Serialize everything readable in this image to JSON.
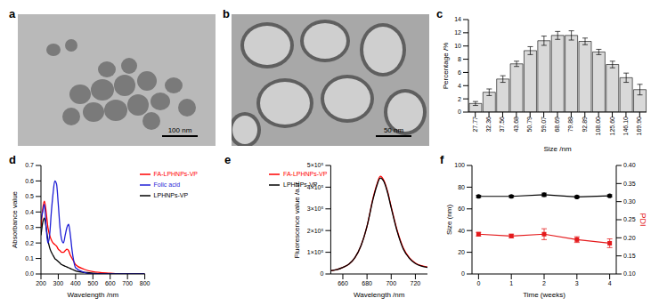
{
  "images": [
    {
      "label": "a",
      "scale_bar": "100 nm"
    },
    {
      "label": "b",
      "scale_bar": "50 nm"
    }
  ],
  "chart_data": [
    {
      "label": "c",
      "type": "bar",
      "x_label": "Size /nm",
      "y_label": "Percentage /%",
      "categories": [
        "27.77",
        "32.36",
        "37.56",
        "43.68",
        "50.79",
        "59.07",
        "68.69",
        "79.88",
        "92.89",
        "108.00",
        "125.60",
        "146.10",
        "169.90"
      ],
      "values": [
        1.3,
        3.0,
        5.0,
        7.3,
        9.3,
        10.8,
        11.6,
        11.6,
        10.7,
        9.1,
        7.2,
        5.2,
        3.4
      ],
      "error": [
        0.3,
        0.5,
        0.5,
        0.4,
        0.6,
        0.7,
        0.6,
        0.7,
        0.5,
        0.4,
        0.5,
        0.7,
        0.8
      ],
      "color": "#d9d9d9",
      "ylim": [
        0,
        14
      ],
      "yticks": [
        0,
        2,
        4,
        6,
        8,
        10,
        12,
        14
      ]
    },
    {
      "label": "d",
      "type": "line",
      "x_label": "Wavelength /nm",
      "y_label": "Absorbance value",
      "x": [
        200,
        210,
        220,
        230,
        240,
        250,
        260,
        270,
        280,
        290,
        300,
        310,
        320,
        330,
        340,
        350,
        360,
        370,
        380,
        390,
        400,
        450,
        500,
        600,
        700,
        800
      ],
      "series": [
        {
          "name": "FA-LPHNPs-VP",
          "color": "#ff0000",
          "values": [
            0.3,
            0.42,
            0.47,
            0.4,
            0.3,
            0.25,
            0.22,
            0.2,
            0.19,
            0.18,
            0.16,
            0.15,
            0.14,
            0.14,
            0.15,
            0.16,
            0.15,
            0.12,
            0.1,
            0.08,
            0.06,
            0.03,
            0.015,
            0.005,
            0,
            0
          ]
        },
        {
          "name": "LPHNPs-VP",
          "color": "#000000",
          "values": [
            0.25,
            0.33,
            0.36,
            0.3,
            0.22,
            0.17,
            0.14,
            0.12,
            0.1,
            0.09,
            0.08,
            0.07,
            0.06,
            0.055,
            0.05,
            0.045,
            0.04,
            0.035,
            0.03,
            0.025,
            0.02,
            0.01,
            0.005,
            0,
            0,
            0
          ]
        },
        {
          "name": "Folic acid",
          "color": "#1f1fd6",
          "values": [
            0.35,
            0.4,
            0.45,
            0.3,
            0.2,
            0.25,
            0.4,
            0.52,
            0.6,
            0.58,
            0.45,
            0.3,
            0.22,
            0.2,
            0.25,
            0.3,
            0.32,
            0.25,
            0.15,
            0.08,
            0.04,
            0.01,
            0,
            0,
            0,
            0
          ]
        }
      ],
      "xlim": [
        200,
        800
      ],
      "xticks": [
        200,
        300,
        400,
        500,
        600,
        700,
        800
      ],
      "ylim": [
        0,
        0.7
      ],
      "yticks": [
        {
          "value": 0,
          "label": "0.0"
        },
        0.1,
        0.2,
        0.3,
        0.4,
        0.5,
        0.6,
        0.7
      ],
      "legend": "upper right"
    },
    {
      "label": "e",
      "type": "line",
      "x_label": "Wavelength /nm",
      "y_label": "Fluorescence value /a.u.",
      "x": [
        650,
        655,
        660,
        665,
        670,
        675,
        680,
        685,
        688,
        691,
        694,
        697,
        700,
        705,
        710,
        715,
        720,
        725,
        730
      ],
      "series": [
        {
          "name": "FA-LPHNPs-VP",
          "color": "#ff0000",
          "values": [
            15000,
            20000,
            30000,
            45000,
            75000,
            130000,
            220000,
            350000,
            410000,
            450000,
            430000,
            380000,
            310000,
            200000,
            120000,
            75000,
            50000,
            38000,
            32000
          ]
        },
        {
          "name": "LPHNPs-VP",
          "color": "#000000",
          "values": [
            15000,
            20000,
            30000,
            45000,
            75000,
            130000,
            220000,
            345000,
            405000,
            442000,
            425000,
            375000,
            305000,
            195000,
            115000,
            72000,
            48000,
            36000,
            30000
          ]
        }
      ],
      "xlim": [
        650,
        730
      ],
      "xticks": [
        660,
        680,
        700,
        720
      ],
      "ylim": [
        0,
        500000
      ],
      "yticks": [
        0,
        {
          "value": 100000,
          "label": "1×10⁵"
        },
        {
          "value": 200000,
          "label": "2×10⁵"
        },
        {
          "value": 300000,
          "label": "3×10⁵"
        },
        {
          "value": 400000,
          "label": "4×10⁵"
        },
        {
          "value": 500000,
          "label": "5×10⁵"
        }
      ],
      "legend": "upper left"
    },
    {
      "label": "f",
      "type": "line",
      "x_label": "Time (weeks)",
      "y_label": "Size (nm)",
      "y2_label": "PDI",
      "x": [
        0,
        1,
        2,
        3,
        4
      ],
      "series": [
        {
          "color": "#000000",
          "marker": "circle",
          "values": [
            71.5,
            71.5,
            73,
            71,
            72
          ],
          "error": [
            1,
            1,
            1.5,
            1,
            1
          ]
        },
        {
          "color": "#e41a1c",
          "marker": "square",
          "axis": "y2",
          "values": [
            0.21,
            0.205,
            0.21,
            0.195,
            0.185
          ],
          "error": [
            0.005,
            0.005,
            0.015,
            0.008,
            0.012
          ]
        }
      ],
      "xlim": [
        -0.2,
        4.2
      ],
      "xticks": [
        0,
        1,
        2,
        3,
        4
      ],
      "ylim": [
        0,
        100
      ],
      "yticks": [
        0,
        20,
        40,
        60,
        80,
        100
      ],
      "y2lim": [
        0.1,
        0.4
      ],
      "y2ticks": [
        {
          "value": 0.1,
          "label": "0.10"
        },
        0.15,
        {
          "value": 0.2,
          "label": "0.20"
        },
        0.25,
        {
          "value": 0.3,
          "label": "0.30"
        },
        0.35,
        {
          "value": 0.4,
          "label": "0.40"
        }
      ]
    }
  ]
}
